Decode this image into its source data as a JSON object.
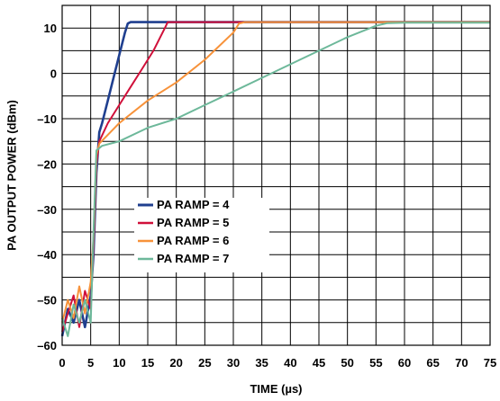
{
  "chart_data": {
    "type": "line",
    "xlabel": "TIME (µs)",
    "ylabel": "PA OUTPUT POWER (dBm)",
    "xlim": [
      0,
      75
    ],
    "ylim": [
      -60,
      15
    ],
    "x_ticks": [
      "0",
      "5",
      "10",
      "15",
      "20",
      "25",
      "30",
      "35",
      "40",
      "45",
      "50",
      "55",
      "60",
      "65",
      "70",
      "75"
    ],
    "y_ticks": [
      "10",
      "0",
      "–10",
      "–20",
      "–30",
      "–40",
      "–50",
      "–60"
    ],
    "grid": true,
    "legend_position": "center-left",
    "series": [
      {
        "name": "PA RAMP = 4",
        "color": "#1f3f8f",
        "points": [
          [
            0,
            -58
          ],
          [
            1,
            -52
          ],
          [
            2,
            -55
          ],
          [
            3,
            -50
          ],
          [
            4,
            -56
          ],
          [
            5,
            -49
          ],
          [
            5.5,
            -40
          ],
          [
            6,
            -22
          ],
          [
            6.5,
            -13
          ],
          [
            7,
            -11
          ],
          [
            8,
            -6
          ],
          [
            9,
            -1
          ],
          [
            10,
            4
          ],
          [
            11,
            9
          ],
          [
            11.5,
            11
          ],
          [
            12,
            11.3
          ],
          [
            20,
            11.3
          ],
          [
            40,
            11.3
          ],
          [
            75,
            11.3
          ]
        ]
      },
      {
        "name": "PA RAMP = 5",
        "color": "#d0103a",
        "points": [
          [
            0,
            -57
          ],
          [
            1,
            -53
          ],
          [
            2,
            -49
          ],
          [
            3,
            -56
          ],
          [
            4,
            -48
          ],
          [
            5,
            -52
          ],
          [
            5.5,
            -38
          ],
          [
            6,
            -20
          ],
          [
            6.5,
            -15
          ],
          [
            8,
            -11
          ],
          [
            10,
            -7
          ],
          [
            12,
            -3
          ],
          [
            14,
            1
          ],
          [
            16,
            5
          ],
          [
            18,
            10
          ],
          [
            18.5,
            11.3
          ],
          [
            30,
            11.3
          ],
          [
            75,
            11.3
          ]
        ]
      },
      {
        "name": "PA RAMP = 6",
        "color": "#f7923a",
        "points": [
          [
            0,
            -55
          ],
          [
            1,
            -50
          ],
          [
            2,
            -54
          ],
          [
            3,
            -47
          ],
          [
            4,
            -53
          ],
          [
            5,
            -46
          ],
          [
            5.5,
            -36
          ],
          [
            6,
            -18
          ],
          [
            6.5,
            -15.5
          ],
          [
            10,
            -11
          ],
          [
            15,
            -6
          ],
          [
            20,
            -2
          ],
          [
            25,
            3
          ],
          [
            30,
            9
          ],
          [
            31,
            11
          ],
          [
            32,
            11.3
          ],
          [
            50,
            11.3
          ],
          [
            75,
            11.3
          ]
        ]
      },
      {
        "name": "PA RAMP = 7",
        "color": "#6db89a",
        "points": [
          [
            0,
            -54
          ],
          [
            1,
            -58
          ],
          [
            2,
            -51
          ],
          [
            3,
            -55
          ],
          [
            4,
            -50
          ],
          [
            5,
            -55
          ],
          [
            5.5,
            -35
          ],
          [
            6,
            -17
          ],
          [
            7,
            -16
          ],
          [
            10,
            -15
          ],
          [
            15,
            -12
          ],
          [
            20,
            -10
          ],
          [
            25,
            -7
          ],
          [
            30,
            -4
          ],
          [
            35,
            -1
          ],
          [
            40,
            2
          ],
          [
            45,
            5
          ],
          [
            50,
            8
          ],
          [
            55,
            10.5
          ],
          [
            57,
            11.1
          ],
          [
            60,
            11.2
          ],
          [
            75,
            11.2
          ]
        ]
      }
    ]
  }
}
